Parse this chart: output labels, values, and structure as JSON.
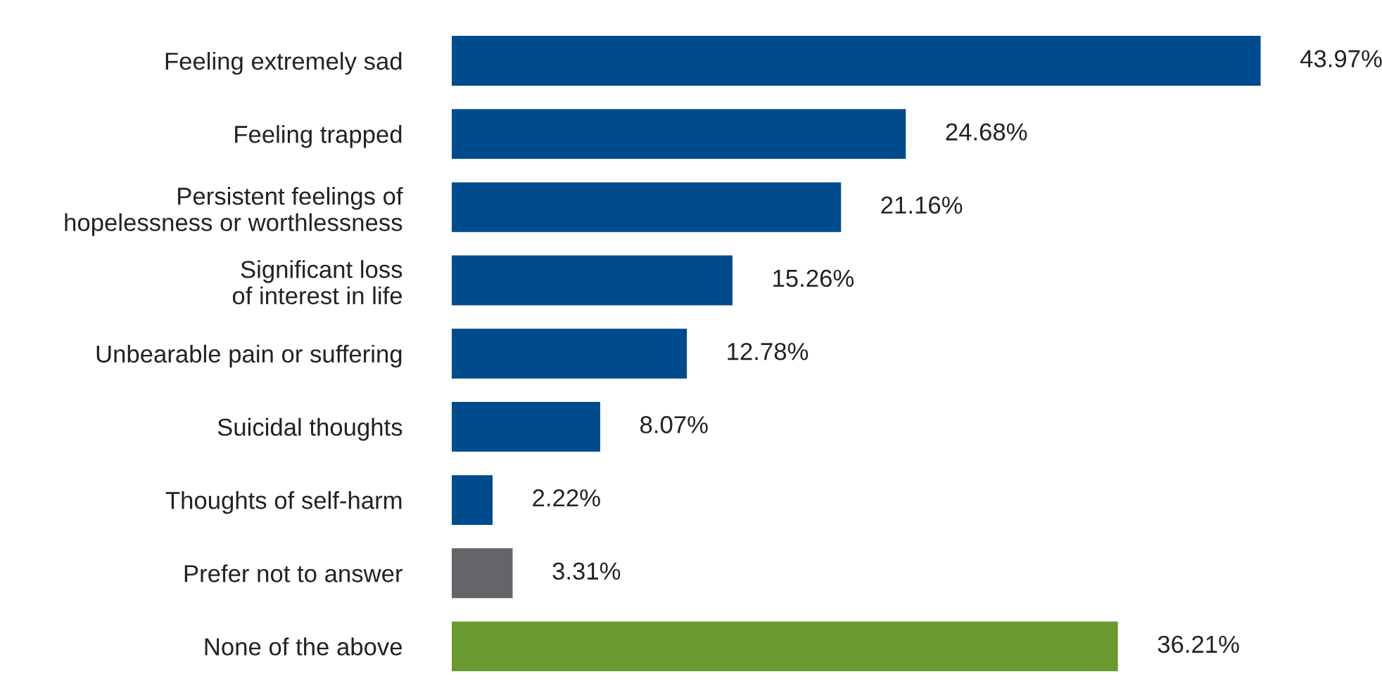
{
  "chart_data": {
    "type": "bar",
    "orientation": "horizontal",
    "categories": [
      "Feeling extremely sad",
      "Feeling trapped",
      "Persistent feelings of\nhopelessness or worthlessness",
      "Significant loss\nof interest in life",
      "Unbearable pain or suffering",
      "Suicidal thoughts",
      "Thoughts of self-harm",
      "Prefer not to answer",
      "None of the above"
    ],
    "values": [
      43.97,
      24.68,
      21.16,
      15.26,
      12.78,
      8.07,
      2.22,
      3.31,
      36.21
    ],
    "colors": [
      "#004b8d",
      "#004b8d",
      "#004b8d",
      "#004b8d",
      "#004b8d",
      "#004b8d",
      "#004b8d",
      "#646569",
      "#6a9a2f"
    ],
    "value_labels": [
      "43.97%",
      "24.68%",
      "21.16%",
      "15.26%",
      "12.78%",
      "8.07%",
      "2.22%",
      "3.31%",
      "36.21%"
    ],
    "grid": false,
    "legend": false
  }
}
